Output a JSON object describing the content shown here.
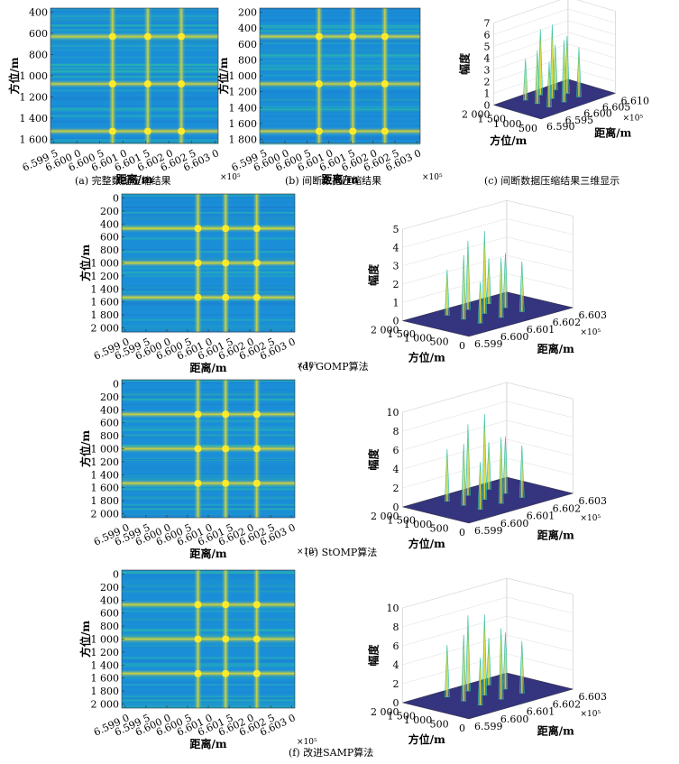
{
  "colors": {
    "low": "#1a8fd8",
    "mid": "#2fbfa2",
    "high": "#f2e020",
    "peak": "#ffea2a",
    "floor": "#35347e"
  },
  "units": {
    "exp": "×10⁵"
  },
  "panels": [
    {
      "id": "a",
      "caption": "(a) 完整数据压缩结果",
      "heatmap": {
        "xlabel": "距离/m",
        "ylabel": "方位/m",
        "xticks": [
          "6.599 5",
          "6.600 0",
          "6.600 5",
          "6.601 0",
          "6.601 5",
          "6.602 0",
          "6.602 5",
          "6.603 0"
        ],
        "yticks": [
          "400",
          "600",
          "800",
          "1 000",
          "1 200",
          "1 400",
          "1 600"
        ],
        "lines_x": [
          0.37,
          0.58,
          0.78
        ],
        "lines_y": [
          0.21,
          0.56,
          0.91
        ]
      }
    },
    {
      "id": "b",
      "caption": "(b) 间断数据压缩结果",
      "heatmap": {
        "xlabel": "距离/m",
        "ylabel": "方位/m",
        "xticks": [
          "6.599 5",
          "6.600 0",
          "6.600 5",
          "6.601 0",
          "6.601 5",
          "6.602 0",
          "6.602 5",
          "6.603 0"
        ],
        "yticks": [
          "200",
          "400",
          "600",
          "800",
          "1 000",
          "1 200",
          "1 400",
          "1 600",
          "1 800"
        ],
        "lines_x": [
          0.37,
          0.58,
          0.78
        ],
        "lines_y": [
          0.21,
          0.56,
          0.91
        ]
      },
      "mesh": {
        "id": "c",
        "caption": "(c) 间断数据压缩结果三维显示",
        "zlabel": "幅度",
        "xlabel": "距离/m",
        "ylabel": "方位/m",
        "zticks": [
          "0",
          "1",
          "2",
          "3",
          "4",
          "5",
          "6",
          "7"
        ],
        "xticks": [
          "6.590",
          "6.595",
          "6.600",
          "6.605",
          "6.610"
        ],
        "yticks": [
          "500",
          "1 000",
          "1 500",
          "2 000"
        ]
      }
    },
    {
      "id": "d",
      "caption": "(d) GOMP算法",
      "heatmap": {
        "xlabel": "距离/m",
        "ylabel": "方位/m",
        "xticks": [
          "6.599 0",
          "6.599 5",
          "6.600 0",
          "6.600 5",
          "6.601 0",
          "6.601 5",
          "6.602 0",
          "6.602 5",
          "6.603 0"
        ],
        "yticks": [
          "0",
          "200",
          "400",
          "600",
          "800",
          "1 000",
          "1 200",
          "1 400",
          "1 600",
          "1 800",
          "2 000"
        ],
        "lines_x": [
          0.44,
          0.6,
          0.78
        ],
        "lines_y": [
          0.25,
          0.5,
          0.75
        ]
      },
      "mesh": {
        "zlabel": "幅度",
        "xlabel": "距离/m",
        "ylabel": "方位/m",
        "zticks": [
          "0",
          "1",
          "2",
          "3",
          "4",
          "5"
        ],
        "xticks": [
          "6.599",
          "6.600",
          "6.601",
          "6.602",
          "6.603"
        ],
        "yticks": [
          "0",
          "500",
          "1 000",
          "1 500",
          "2 000"
        ]
      }
    },
    {
      "id": "e",
      "caption": "(e) StOMP算法",
      "heatmap": {
        "xlabel": "距离/m",
        "ylabel": "方位/m",
        "xticks": [
          "6.599 0",
          "6.599 5",
          "6.600 0",
          "6.600 5",
          "6.601 0",
          "6.601 5",
          "6.602 0",
          "6.602 5",
          "6.603 0"
        ],
        "yticks": [
          "0",
          "200",
          "400",
          "600",
          "800",
          "1 000",
          "1 200",
          "1 400",
          "1 600",
          "1 800",
          "2 000"
        ],
        "lines_x": [
          0.44,
          0.6,
          0.78
        ],
        "lines_y": [
          0.25,
          0.5,
          0.75
        ]
      },
      "mesh": {
        "zlabel": "幅度",
        "xlabel": "距离/m",
        "ylabel": "方位/m",
        "zticks": [
          "0",
          "2",
          "4",
          "6",
          "8",
          "10"
        ],
        "xticks": [
          "6.599",
          "6.600",
          "6.601",
          "6.602",
          "6.603"
        ],
        "yticks": [
          "0",
          "500",
          "1 000",
          "1 500",
          "2 000"
        ]
      }
    },
    {
      "id": "f",
      "caption": "(f) 改进SAMP算法",
      "heatmap": {
        "xlabel": "距离/m",
        "ylabel": "方位/m",
        "xticks": [
          "6.599 0",
          "6.599 5",
          "6.600 0",
          "6.600 5",
          "6.601 0",
          "6.601 5",
          "6.602 0",
          "6.602 5",
          "6.603 0"
        ],
        "yticks": [
          "0",
          "200",
          "400",
          "600",
          "800",
          "1 000",
          "1 200",
          "1 400",
          "1 600",
          "1 800",
          "2 000"
        ],
        "lines_x": [
          0.44,
          0.6,
          0.78
        ],
        "lines_y": [
          0.25,
          0.5,
          0.75
        ]
      },
      "mesh": {
        "zlabel": "幅度",
        "xlabel": "距离/m",
        "ylabel": "方位/m",
        "zticks": [
          "0",
          "2",
          "4",
          "6",
          "8",
          "10"
        ],
        "xticks": [
          "6.599",
          "6.600",
          "6.601",
          "6.602",
          "6.603"
        ],
        "yticks": [
          "0",
          "500",
          "1 000",
          "1 500",
          "2 000"
        ]
      }
    }
  ],
  "chart_data": [
    {
      "type": "heatmap",
      "id": "a",
      "xlabel": "距离/m",
      "ylabel": "方位/m",
      "x_multiplier": "×10⁵",
      "x_ticks": [
        6.5995,
        6.6,
        6.6005,
        6.601,
        6.6015,
        6.602,
        6.6025,
        6.603
      ],
      "y_ticks": [
        400,
        600,
        800,
        1000,
        1200,
        1400,
        1600
      ],
      "targets_range": [
        6.6005,
        6.6011,
        6.6018
      ],
      "targets_azimuth": [
        500,
        1000,
        1500
      ]
    },
    {
      "type": "heatmap",
      "id": "b",
      "xlabel": "距离/m",
      "ylabel": "方位/m",
      "x_multiplier": "×10⁵",
      "x_ticks": [
        6.5995,
        6.6,
        6.6005,
        6.601,
        6.6015,
        6.602,
        6.6025,
        6.603
      ],
      "y_ticks": [
        200,
        400,
        600,
        800,
        1000,
        1200,
        1400,
        1600,
        1800
      ]
    },
    {
      "type": "surface",
      "id": "c",
      "zlabel": "幅度",
      "xlabel": "距离/m",
      "ylabel": "方位/m",
      "x_multiplier": "×10⁵",
      "zlim": [
        0,
        7
      ],
      "x_ticks": [
        6.59,
        6.595,
        6.6,
        6.605,
        6.61
      ],
      "y_ticks": [
        500,
        1000,
        1500,
        2000
      ]
    },
    {
      "type": "heatmap",
      "id": "d",
      "xlabel": "距离/m",
      "ylabel": "方位/m",
      "x_multiplier": "×10⁵",
      "x_ticks": [
        6.599,
        6.5995,
        6.6,
        6.6005,
        6.601,
        6.6015,
        6.602,
        6.6025,
        6.603
      ],
      "y_ticks": [
        0,
        200,
        400,
        600,
        800,
        1000,
        1200,
        1400,
        1600,
        1800,
        2000
      ]
    },
    {
      "type": "surface",
      "id": "d3",
      "zlabel": "幅度",
      "xlabel": "距离/m",
      "ylabel": "方位/m",
      "x_multiplier": "×10⁵",
      "zlim": [
        0,
        5
      ],
      "x_ticks": [
        6.599,
        6.6,
        6.601,
        6.602,
        6.603
      ],
      "y_ticks": [
        0,
        500,
        1000,
        1500,
        2000
      ]
    },
    {
      "type": "heatmap",
      "id": "e",
      "xlabel": "距离/m",
      "ylabel": "方位/m",
      "x_multiplier": "×10⁵",
      "x_ticks": [
        6.599,
        6.5995,
        6.6,
        6.6005,
        6.601,
        6.6015,
        6.602,
        6.6025,
        6.603
      ],
      "y_ticks": [
        0,
        200,
        400,
        600,
        800,
        1000,
        1200,
        1400,
        1600,
        1800,
        2000
      ]
    },
    {
      "type": "surface",
      "id": "e3",
      "zlabel": "幅度",
      "xlabel": "距离/m",
      "ylabel": "方位/m",
      "x_multiplier": "×10⁵",
      "zlim": [
        0,
        10
      ],
      "x_ticks": [
        6.599,
        6.6,
        6.601,
        6.602,
        6.603
      ],
      "y_ticks": [
        0,
        500,
        1000,
        1500,
        2000
      ]
    },
    {
      "type": "heatmap",
      "id": "f",
      "xlabel": "距离/m",
      "ylabel": "方位/m",
      "x_multiplier": "×10⁵",
      "x_ticks": [
        6.599,
        6.5995,
        6.6,
        6.6005,
        6.601,
        6.6015,
        6.602,
        6.6025,
        6.603
      ],
      "y_ticks": [
        0,
        200,
        400,
        600,
        800,
        1000,
        1200,
        1400,
        1600,
        1800,
        2000
      ]
    },
    {
      "type": "surface",
      "id": "f3",
      "zlabel": "幅度",
      "xlabel": "距离/m",
      "ylabel": "方位/m",
      "x_multiplier": "×10⁵",
      "zlim": [
        0,
        10
      ],
      "x_ticks": [
        6.599,
        6.6,
        6.601,
        6.602,
        6.603
      ],
      "y_ticks": [
        0,
        500,
        1000,
        1500,
        2000
      ]
    }
  ]
}
